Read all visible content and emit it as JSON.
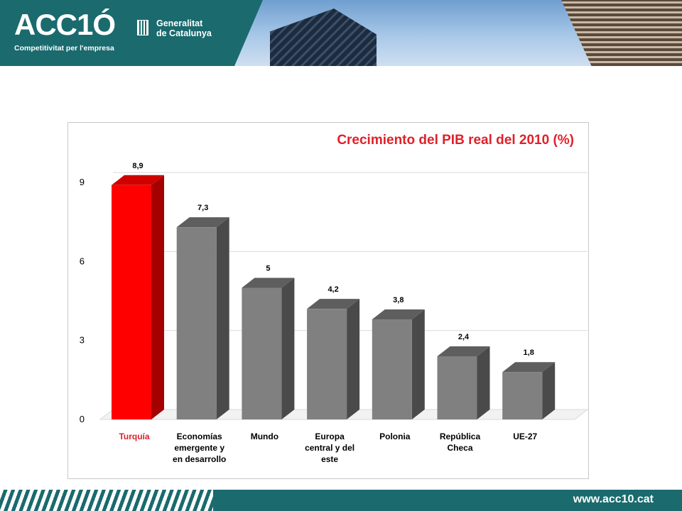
{
  "header": {
    "logo": "ACC1Ó",
    "tagline": "Competitivitat per l'empresa",
    "generalitat_line1": "Generalitat",
    "generalitat_line2": "de Catalunya"
  },
  "footer": {
    "url": "www.acc10.cat"
  },
  "colors": {
    "header": "#1a6a6e",
    "highlight": "#ff0000",
    "bar": "#808080",
    "title": "#e0202a"
  },
  "chart_data": {
    "type": "bar",
    "title": "Crecimiento del PIB real del 2010 (%)",
    "categories": [
      [
        "Turquía"
      ],
      [
        "Economías",
        "emergente y",
        "en desarrollo"
      ],
      [
        "Mundo"
      ],
      [
        "Europa",
        "central y del",
        "este"
      ],
      [
        "Polonia"
      ],
      [
        "República",
        "Checa"
      ],
      [
        "UE-27"
      ]
    ],
    "values": [
      8.9,
      7.3,
      5,
      4.2,
      3.8,
      2.4,
      1.8
    ],
    "value_labels": [
      "8,9",
      "7,3",
      "5",
      "4,2",
      "3,8",
      "2,4",
      "1,8"
    ],
    "yticks": [
      0,
      3,
      6,
      9
    ],
    "ylim": [
      0,
      9.8
    ],
    "highlight_index": 0,
    "grid": true,
    "legend": "none"
  }
}
